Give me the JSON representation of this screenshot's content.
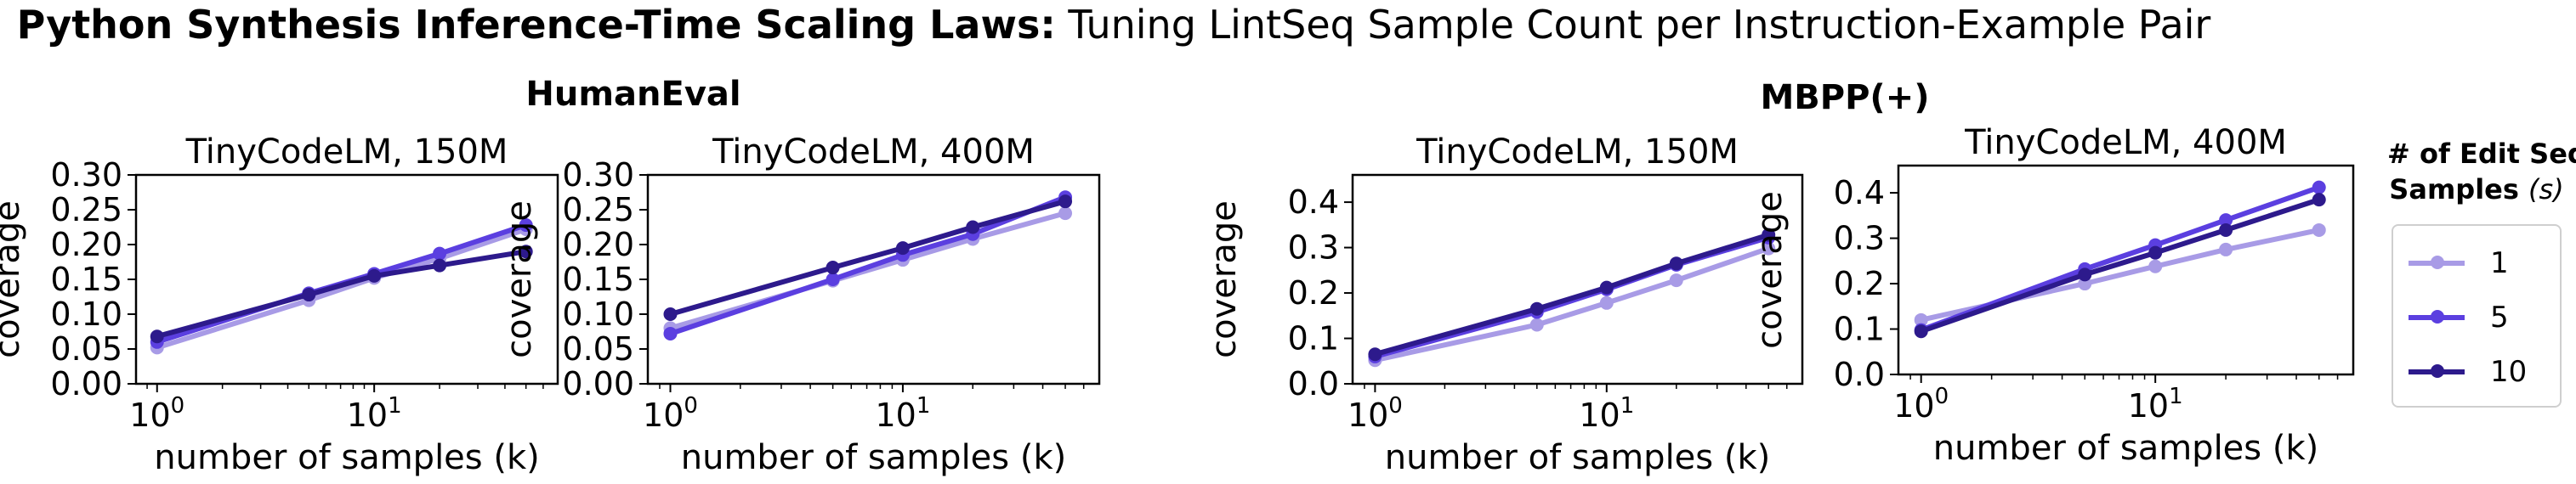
{
  "figure": {
    "title_bold": "Python Synthesis Inference-Time Scaling Laws:",
    "title_rest": " Tuning LintSeq Sample Count per Instruction-Example Pair"
  },
  "groups": [
    {
      "label": "HumanEval"
    },
    {
      "label": "MBPP(+)"
    }
  ],
  "legend": {
    "title_line1": "# of Edit Seq.",
    "title_line2": "Samples",
    "title_symbol": "(s)",
    "items": [
      {
        "label": "1",
        "color": "#a89be6"
      },
      {
        "label": "5",
        "color": "#5b3fe0"
      },
      {
        "label": "10",
        "color": "#2d1a8c"
      }
    ]
  },
  "chart_data": [
    {
      "type": "line",
      "group": "HumanEval",
      "title": "TinyCodeLM, 150M",
      "xlabel": "number of samples (k)",
      "ylabel": "coverage",
      "xscale": "log",
      "xlim": [
        0.8,
        70
      ],
      "ylim": [
        0,
        0.3
      ],
      "yticks": [
        0.0,
        0.05,
        0.1,
        0.15,
        0.2,
        0.25,
        0.3
      ],
      "ytick_labels": [
        "0.00",
        "0.05",
        "0.10",
        "0.15",
        "0.20",
        "0.25",
        "0.30"
      ],
      "xticks": [
        1,
        10
      ],
      "x": [
        1,
        5,
        10,
        20,
        50
      ],
      "series": [
        {
          "name": "1",
          "color": "#a89be6",
          "values": [
            0.052,
            0.12,
            0.152,
            0.18,
            0.222
          ]
        },
        {
          "name": "5",
          "color": "#5b3fe0",
          "values": [
            0.06,
            0.13,
            0.158,
            0.187,
            0.228
          ]
        },
        {
          "name": "10",
          "color": "#2d1a8c",
          "values": [
            0.068,
            0.128,
            0.155,
            0.17,
            0.19
          ]
        }
      ]
    },
    {
      "type": "line",
      "group": "HumanEval",
      "title": "TinyCodeLM, 400M",
      "xlabel": "number of samples (k)",
      "ylabel": "coverage",
      "xscale": "log",
      "xlim": [
        0.8,
        70
      ],
      "ylim": [
        0,
        0.3
      ],
      "yticks": [
        0.0,
        0.05,
        0.1,
        0.15,
        0.2,
        0.25,
        0.3
      ],
      "ytick_labels": [
        "0.00",
        "0.05",
        "0.10",
        "0.15",
        "0.20",
        "0.25",
        "0.30"
      ],
      "xticks": [
        1,
        10
      ],
      "x": [
        1,
        5,
        10,
        20,
        50
      ],
      "series": [
        {
          "name": "1",
          "color": "#a89be6",
          "values": [
            0.08,
            0.148,
            0.178,
            0.208,
            0.245
          ]
        },
        {
          "name": "5",
          "color": "#5b3fe0",
          "values": [
            0.072,
            0.15,
            0.185,
            0.215,
            0.268
          ]
        },
        {
          "name": "10",
          "color": "#2d1a8c",
          "values": [
            0.1,
            0.167,
            0.195,
            0.225,
            0.262
          ]
        }
      ]
    },
    {
      "type": "line",
      "group": "MBPP(+)",
      "title": "TinyCodeLM, 150M",
      "xlabel": "number of samples (k)",
      "ylabel": "coverage",
      "xscale": "log",
      "xlim": [
        0.8,
        70
      ],
      "ylim": [
        0,
        0.46
      ],
      "yticks": [
        0.0,
        0.1,
        0.2,
        0.3,
        0.4
      ],
      "ytick_labels": [
        "0.0",
        "0.1",
        "0.2",
        "0.3",
        "0.4"
      ],
      "xticks": [
        1,
        10
      ],
      "x": [
        1,
        5,
        10,
        20,
        50
      ],
      "series": [
        {
          "name": "1",
          "color": "#a89be6",
          "values": [
            0.052,
            0.13,
            0.178,
            0.228,
            0.298
          ]
        },
        {
          "name": "5",
          "color": "#5b3fe0",
          "values": [
            0.06,
            0.158,
            0.208,
            0.262,
            0.322
          ]
        },
        {
          "name": "10",
          "color": "#2d1a8c",
          "values": [
            0.065,
            0.165,
            0.212,
            0.265,
            0.328
          ]
        }
      ]
    },
    {
      "type": "line",
      "group": "MBPP(+)",
      "title": "TinyCodeLM, 400M",
      "xlabel": "number of samples (k)",
      "ylabel": "coverage",
      "xscale": "log",
      "xlim": [
        0.8,
        70
      ],
      "ylim": [
        0,
        0.46
      ],
      "yticks": [
        0.0,
        0.1,
        0.2,
        0.3,
        0.4
      ],
      "ytick_labels": [
        "0.0",
        "0.1",
        "0.2",
        "0.3",
        "0.4"
      ],
      "xticks": [
        1,
        10
      ],
      "x": [
        1,
        5,
        10,
        20,
        50
      ],
      "series": [
        {
          "name": "1",
          "color": "#a89be6",
          "values": [
            0.12,
            0.2,
            0.238,
            0.275,
            0.318
          ]
        },
        {
          "name": "5",
          "color": "#5b3fe0",
          "values": [
            0.098,
            0.232,
            0.285,
            0.34,
            0.412
          ]
        },
        {
          "name": "10",
          "color": "#2d1a8c",
          "values": [
            0.095,
            0.22,
            0.268,
            0.318,
            0.385
          ]
        }
      ]
    }
  ]
}
